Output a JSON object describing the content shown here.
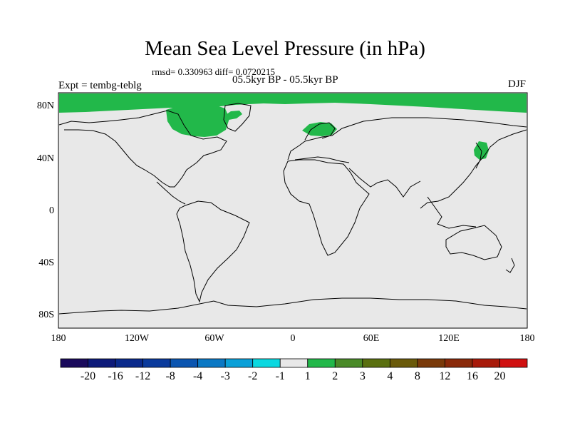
{
  "title": "Mean Sea Level Pressure (in hPa)",
  "stats": "rmsd= 0.330963 diff= 0.0720215",
  "period": "05.5kyr BP - 05.5kyr BP",
  "experiment": "Expt = tembg-teblg",
  "season": "DJF",
  "y_axis": {
    "ticks": [
      "80N",
      "40N",
      "0",
      "40S",
      "80S"
    ]
  },
  "x_axis": {
    "ticks": [
      "180",
      "120W",
      "60W",
      "0",
      "60E",
      "120E",
      "180"
    ]
  },
  "colorbar": {
    "labels": [
      "-20",
      "-16",
      "-12",
      "-8",
      "-4",
      "-3",
      "-2",
      "-1",
      "1",
      "2",
      "3",
      "4",
      "8",
      "12",
      "16",
      "20"
    ],
    "colors": [
      "#1a0a5c",
      "#0d1a7a",
      "#0a2a8c",
      "#0a3a9c",
      "#0a55b0",
      "#0a78c4",
      "#0aa0d8",
      "#0ad8e0",
      "#e8e8e8",
      "#22b84a",
      "#4a8a28",
      "#5a7010",
      "#6a5a0a",
      "#7a3a0a",
      "#8a2a0a",
      "#a81a0a",
      "#d01010"
    ]
  },
  "colors": {
    "background": "#e8e8e8",
    "anomaly_green": "#22b84a",
    "coast": "#000000"
  }
}
